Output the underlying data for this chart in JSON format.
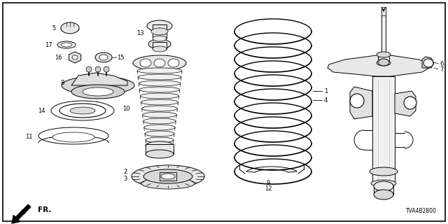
{
  "background_color": "#ffffff",
  "diagram_code": "TVA4B2800",
  "fig_w": 6.4,
  "fig_h": 3.2,
  "dpi": 100
}
